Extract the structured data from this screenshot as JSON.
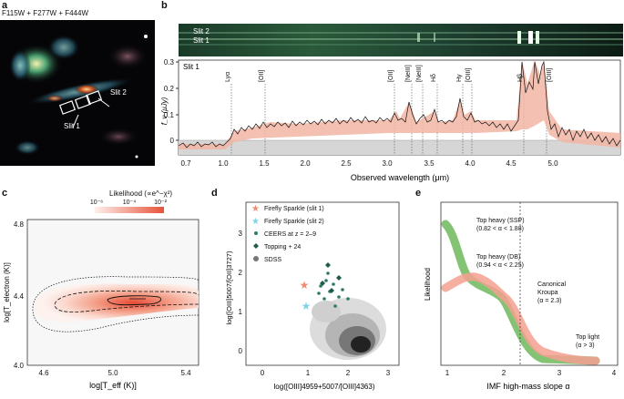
{
  "panel_a": {
    "letter": "a",
    "filters": "F115W + F277W + F444W",
    "slit1": "Slit 1",
    "slit2": "Slit 2"
  },
  "panel_b": {
    "letter": "b",
    "slit2": "Slit 2",
    "slit1": "Slit 1",
    "spectrum_label": "Slit 1",
    "ylabel": "f_ν (μJy)",
    "xlabel": "Observed wavelength (μm)",
    "yticks": [
      "0",
      "0.1",
      "0.2",
      "0.3"
    ],
    "xticks": [
      "0.7",
      "1.0",
      "1.5",
      "2.0",
      "2.5",
      "3.0",
      "3.5",
      "4.0",
      "4.5",
      "5.0"
    ],
    "lines": [
      "Lyα",
      "[OII]",
      "[OII]",
      "[NeIII]",
      "[NeIII]",
      "Hδ",
      "Hγ",
      "[OIII]",
      "Hβ",
      "[OIII]"
    ]
  },
  "panel_c": {
    "letter": "c",
    "colorbar_title": "Likelihood (∝e^−χ²)",
    "colorbar_ticks": [
      "10⁻⁶",
      "10⁻⁴",
      "10⁻²"
    ],
    "ylabel": "log[T_electron (K)]",
    "xlabel": "log[T_eff (K)]",
    "yticks": [
      "4.0",
      "4.4",
      "4.8"
    ],
    "xticks": [
      "4.6",
      "5.0",
      "5.4"
    ]
  },
  "panel_d": {
    "letter": "d",
    "legend": [
      {
        "label": "Firefly Sparkle (slit 1)",
        "color": "#f08a72"
      },
      {
        "label": "Firefly Sparkle (slit 2)",
        "color": "#7fd3ea"
      },
      {
        "label": "CEERS at z = 2–9",
        "color": "#2f7a66"
      },
      {
        "label": "Topping + 24",
        "color": "#1f5a4a"
      },
      {
        "label": "SDSS",
        "color": "#777777"
      }
    ],
    "ylabel": "log([OIII]5007/[OII]3727)",
    "xlabel": "log([OIII]4959+5007/[OIII]4363)",
    "yticks": [
      "0",
      "1",
      "2",
      "3"
    ],
    "xticks": [
      "0",
      "1",
      "2",
      "3"
    ]
  },
  "panel_e": {
    "letter": "e",
    "ylabel": "Likelihood",
    "xlabel": "IMF high-mass slope α",
    "xticks": [
      "1",
      "2",
      "3",
      "4"
    ],
    "annotations": {
      "top_heavy_ssp": "Top heavy (SSP)",
      "top_heavy_ssp_range": "(0.82 < α < 1.88)",
      "top_heavy_db": "Top heavy (DB)",
      "top_heavy_db_range": "(0.94 < α < 2.25)",
      "canonical": "Canonical",
      "kroupa": "Kroupa",
      "kroupa_alpha": "(α = 2.3)",
      "top_light": "Top light",
      "top_light_range": "(α > 3)"
    },
    "series_colors": {
      "ssp": "#6fb85a",
      "db": "#f4a090"
    }
  }
}
